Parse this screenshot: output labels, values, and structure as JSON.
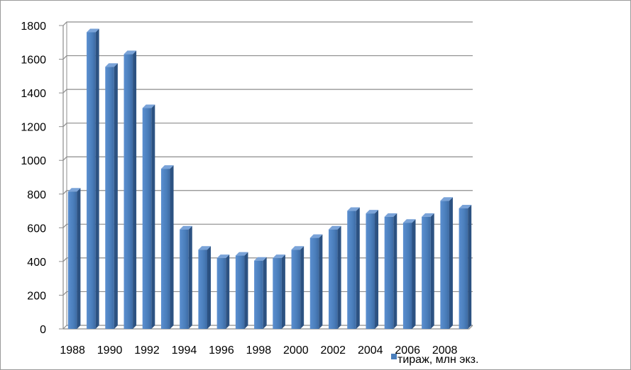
{
  "chart_data": {
    "type": "bar",
    "categories": [
      "1988",
      "1989",
      "1990",
      "1991",
      "1992",
      "1993",
      "1994",
      "1995",
      "1996",
      "1997",
      "1998",
      "1999",
      "2000",
      "2001",
      "2002",
      "2003",
      "2004",
      "2005",
      "2006",
      "2007",
      "2008",
      "2009"
    ],
    "x_tick_labels": [
      "1988",
      "1990",
      "1992",
      "1994",
      "1996",
      "1998",
      "2000",
      "2002",
      "2004",
      "2006",
      "2008"
    ],
    "series": [
      {
        "name": "тираж, млн экз.",
        "values": [
          815,
          1760,
          1555,
          1630,
          1310,
          950,
          590,
          470,
          420,
          435,
          405,
          420,
          470,
          540,
          590,
          700,
          685,
          665,
          630,
          665,
          760,
          715
        ]
      }
    ],
    "y_ticks": [
      0,
      200,
      400,
      600,
      800,
      1000,
      1200,
      1400,
      1600,
      1800
    ],
    "ylim": [
      0,
      1800
    ],
    "grid": true,
    "legend_position": "bottom-right",
    "colors": {
      "bar": "#4a7ebb",
      "bar_dark": "#2c5282",
      "grid": "#8c8c8c",
      "axis": "#8c8c8c"
    }
  }
}
